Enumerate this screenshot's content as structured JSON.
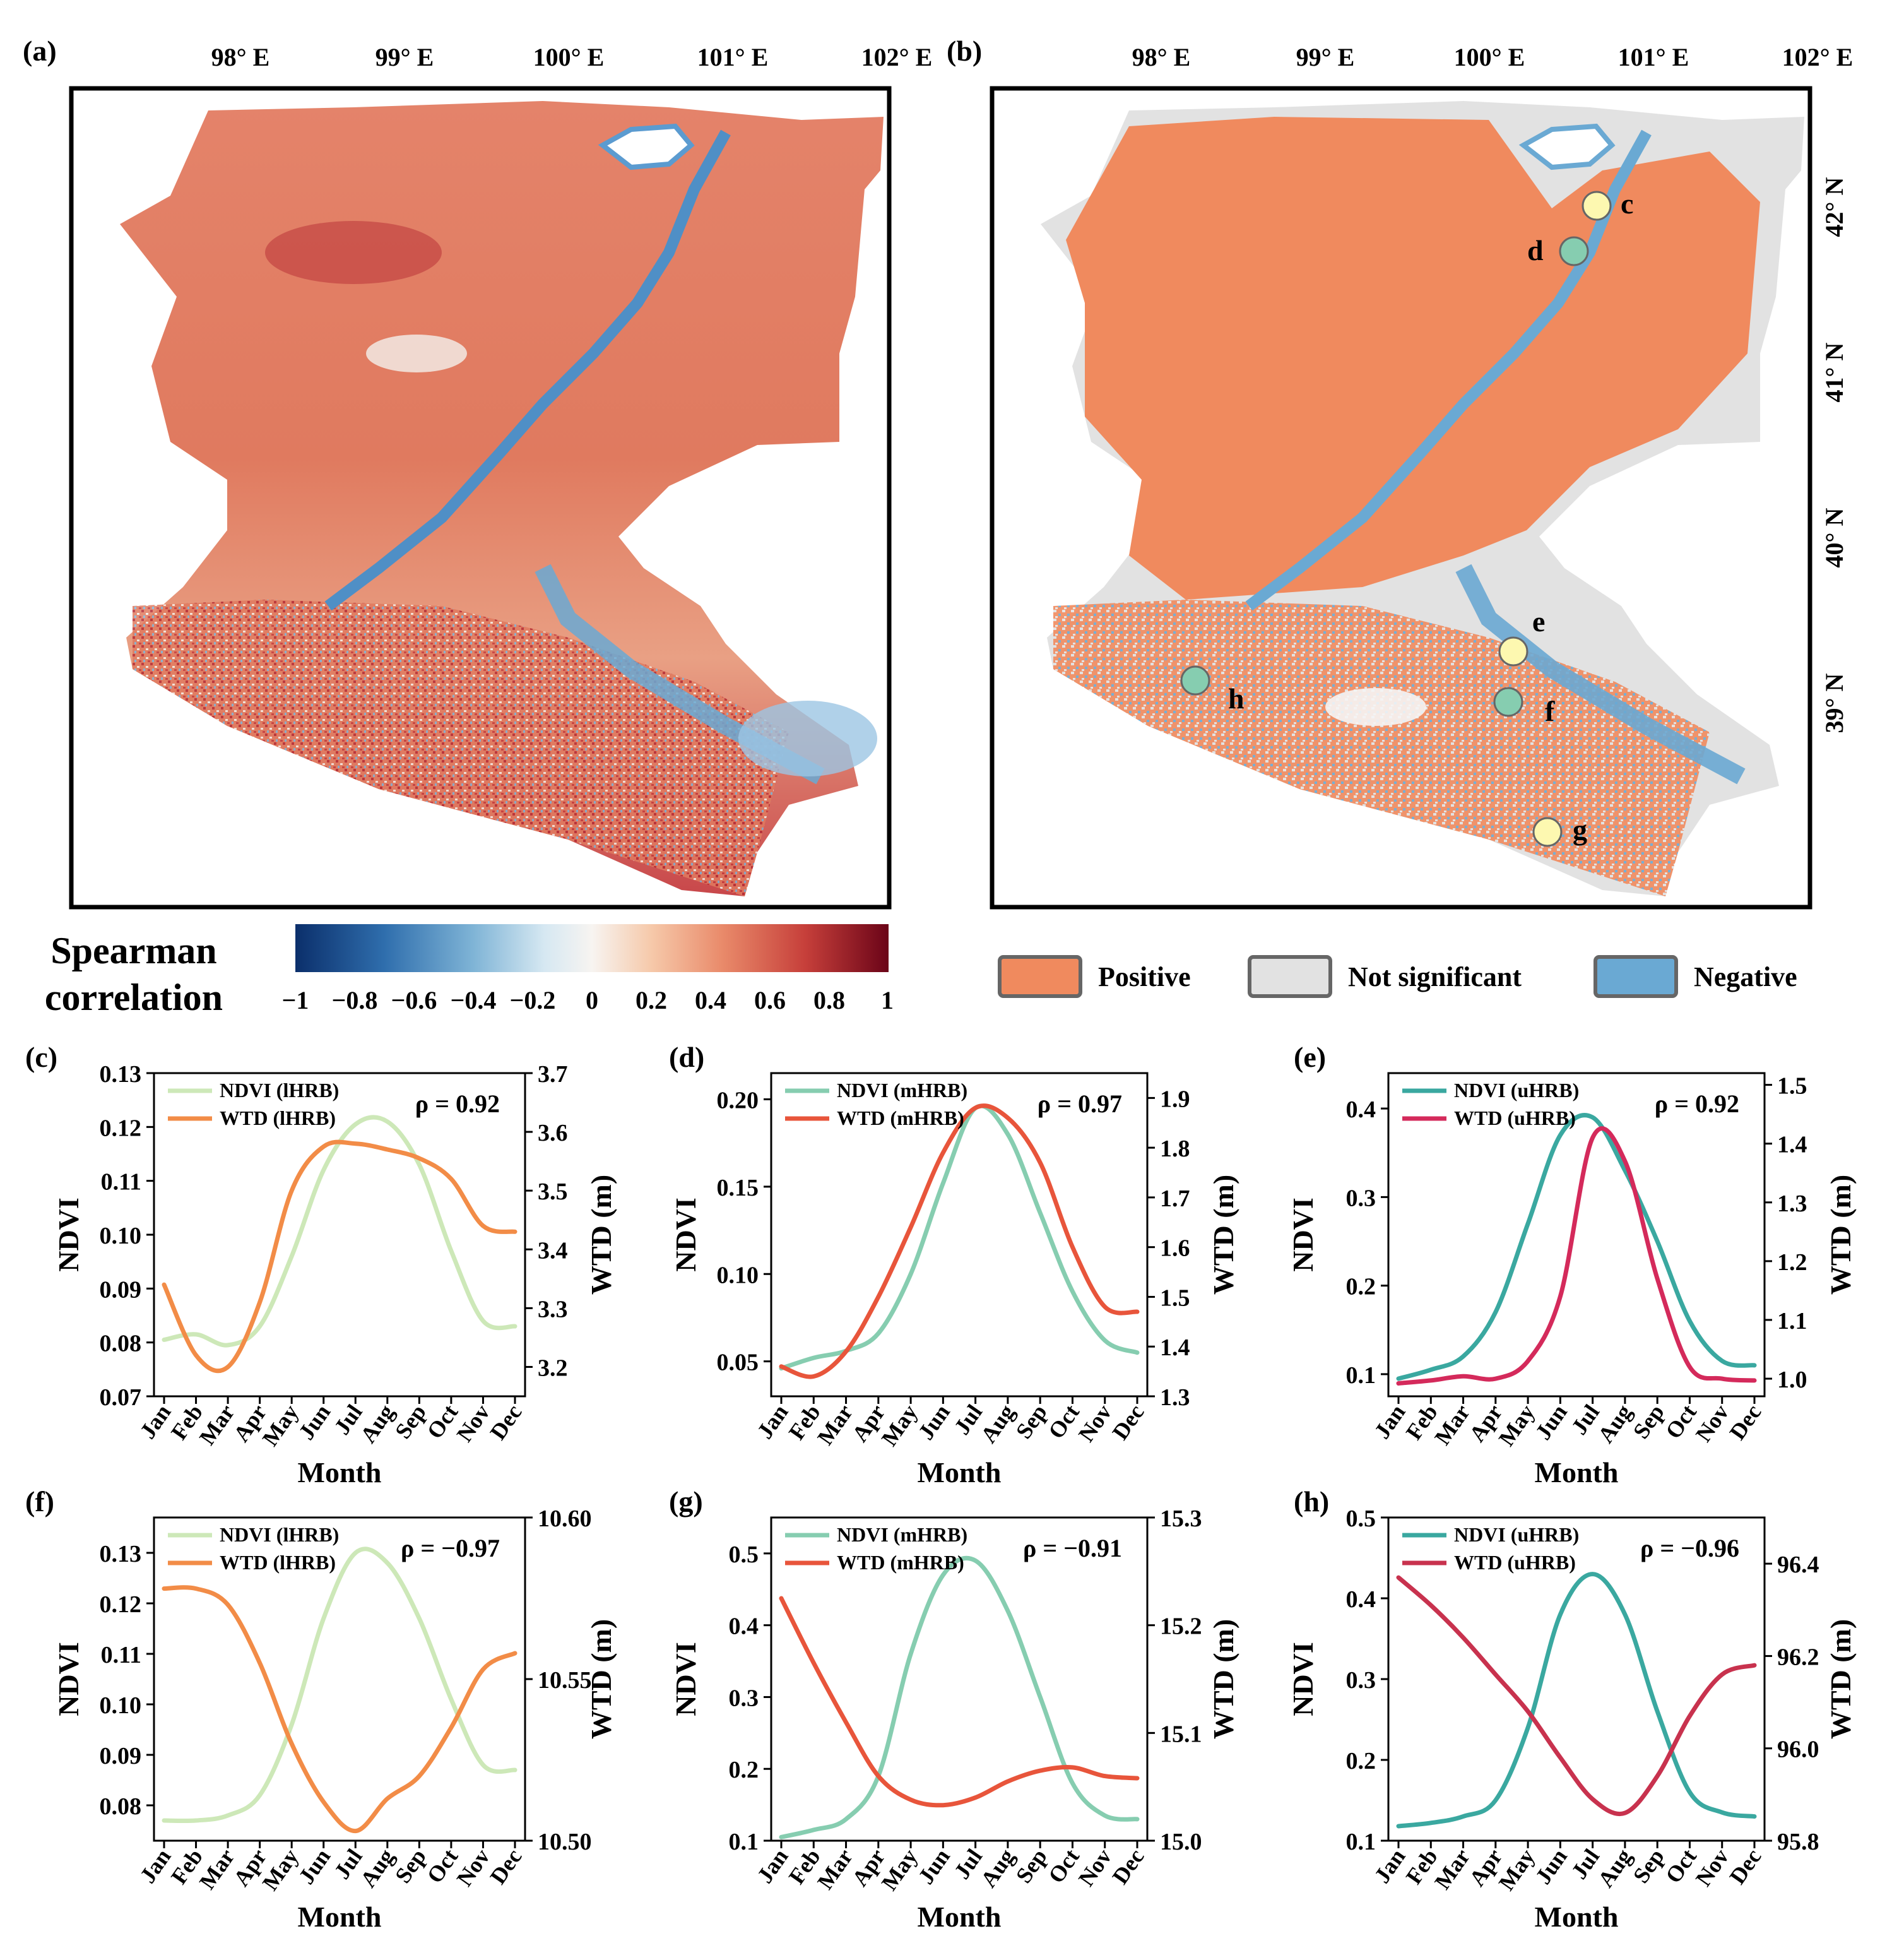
{
  "figure": {
    "panel_tags": [
      "(a)",
      "(b)",
      "(c)",
      "(d)",
      "(e)",
      "(f)",
      "(g)",
      "(h)"
    ],
    "lon_ticks": [
      "98° E",
      "99° E",
      "100° E",
      "101° E",
      "102° E"
    ],
    "lat_ticks": [
      "42° N",
      "41° N",
      "40° N",
      "39° N"
    ],
    "colorbar": {
      "title_line1": "Spearman",
      "title_line2": "correlation",
      "ticks": [
        "−1",
        "−0.8",
        "−0.6",
        "−0.4",
        "−0.2",
        "0",
        "0.2",
        "0.4",
        "0.6",
        "0.8",
        "1"
      ],
      "colors": [
        "#0b2f6b",
        "#2f6ead",
        "#7fb4d6",
        "#d6e8f2",
        "#f7f4f1",
        "#f6c9aa",
        "#e98a6a",
        "#c63f3a",
        "#6b0418"
      ]
    },
    "legend_b": [
      {
        "label": "Positive",
        "color": "#f08a5e"
      },
      {
        "label": "Not significant",
        "color": "#e2e2e2"
      },
      {
        "label": "Negative",
        "color": "#6aa9d3"
      }
    ],
    "site_markers": [
      {
        "label": "c",
        "type": "positive",
        "color": "#fdf8b0"
      },
      {
        "label": "d",
        "type": "negative",
        "color": "#86cdb0"
      },
      {
        "label": "e",
        "type": "positive",
        "color": "#fdf8b0"
      },
      {
        "label": "f",
        "type": "negative",
        "color": "#86cdb0"
      },
      {
        "label": "g",
        "type": "positive",
        "color": "#fdf8b0"
      },
      {
        "label": "h",
        "type": "negative",
        "color": "#86cdb0"
      }
    ],
    "map_colors": {
      "positive_red": "#e07a5f",
      "negative_blue": "#5b9bd0",
      "light": "#f3e6dd"
    }
  },
  "chart_data": [
    {
      "id": "c",
      "type": "line",
      "tag": "(c)",
      "categories": [
        "Jan",
        "Feb",
        "Mar",
        "Apr",
        "May",
        "Jun",
        "Jul",
        "Aug",
        "Sep",
        "Oct",
        "Nov",
        "Dec"
      ],
      "xlabel": "Month",
      "ylabel_left": "NDVI",
      "ylabel_right": "WTD (m)",
      "rho": "ρ = 0.92",
      "left": {
        "min": 0.07,
        "max": 0.13,
        "ticks": [
          "0.07",
          "0.08",
          "0.09",
          "0.10",
          "0.11",
          "0.12",
          "0.13"
        ]
      },
      "right": {
        "min": 3.15,
        "max": 3.7,
        "ticks": [
          "3.2",
          "3.3",
          "3.4",
          "3.5",
          "3.6",
          "3.7"
        ]
      },
      "series": [
        {
          "name": "NDVI (lHRB)",
          "axis": "left",
          "color": "#cde8b8",
          "values": [
            0.0805,
            0.0815,
            0.0795,
            0.083,
            0.096,
            0.112,
            0.1205,
            0.121,
            0.113,
            0.097,
            0.084,
            0.083
          ]
        },
        {
          "name": "WTD (lHRB)",
          "axis": "right",
          "color": "#f28c47",
          "values": [
            3.34,
            3.22,
            3.2,
            3.31,
            3.5,
            3.575,
            3.58,
            3.57,
            3.555,
            3.52,
            3.44,
            3.43
          ]
        }
      ]
    },
    {
      "id": "d",
      "type": "line",
      "tag": "(d)",
      "categories": [
        "Jan",
        "Feb",
        "Mar",
        "Apr",
        "May",
        "Jun",
        "Jul",
        "Aug",
        "Sep",
        "Oct",
        "Nov",
        "Dec"
      ],
      "xlabel": "Month",
      "ylabel_left": "NDVI",
      "ylabel_right": "WTD (m)",
      "rho": "ρ = 0.97",
      "left": {
        "min": 0.03,
        "max": 0.215,
        "ticks": [
          "0.05",
          "0.10",
          "0.15",
          "0.20"
        ]
      },
      "right": {
        "min": 1.3,
        "max": 1.95,
        "ticks": [
          "1.3",
          "1.4",
          "1.5",
          "1.6",
          "1.7",
          "1.8",
          "1.9"
        ]
      },
      "series": [
        {
          "name": "NDVI (mHRB)",
          "axis": "left",
          "color": "#86cdb0",
          "values": [
            0.046,
            0.052,
            0.056,
            0.066,
            0.1,
            0.152,
            0.195,
            0.18,
            0.135,
            0.09,
            0.062,
            0.055
          ]
        },
        {
          "name": "WTD (mHRB)",
          "axis": "right",
          "color": "#e8553b",
          "values": [
            1.36,
            1.34,
            1.39,
            1.5,
            1.64,
            1.79,
            1.88,
            1.86,
            1.77,
            1.6,
            1.48,
            1.47
          ]
        }
      ]
    },
    {
      "id": "e",
      "type": "line",
      "tag": "(e)",
      "categories": [
        "Jan",
        "Feb",
        "Mar",
        "Apr",
        "May",
        "Jun",
        "Jul",
        "Aug",
        "Sep",
        "Oct",
        "Nov",
        "Dec"
      ],
      "xlabel": "Month",
      "ylabel_left": "NDVI",
      "ylabel_right": "WTD (m)",
      "rho": "ρ = 0.92",
      "left": {
        "min": 0.075,
        "max": 0.44,
        "ticks": [
          "0.1",
          "0.2",
          "0.3",
          "0.4"
        ]
      },
      "right": {
        "min": 0.97,
        "max": 1.52,
        "ticks": [
          "1.0",
          "1.1",
          "1.2",
          "1.3",
          "1.4",
          "1.5"
        ]
      },
      "series": [
        {
          "name": "NDVI (uHRB)",
          "axis": "left",
          "color": "#3aa8a0",
          "values": [
            0.095,
            0.105,
            0.12,
            0.17,
            0.27,
            0.37,
            0.39,
            0.33,
            0.25,
            0.16,
            0.115,
            0.11
          ]
        },
        {
          "name": "WTD (uHRB)",
          "axis": "right",
          "color": "#d42a5b",
          "values": [
            0.992,
            0.997,
            1.004,
            1.0,
            1.03,
            1.14,
            1.41,
            1.37,
            1.17,
            1.02,
            1.0,
            0.997
          ]
        }
      ]
    },
    {
      "id": "f",
      "type": "line",
      "tag": "(f)",
      "categories": [
        "Jan",
        "Feb",
        "Mar",
        "Apr",
        "May",
        "Jun",
        "Jul",
        "Aug",
        "Sep",
        "Oct",
        "Nov",
        "Dec"
      ],
      "xlabel": "Month",
      "ylabel_left": "NDVI",
      "ylabel_right": "WTD (m)",
      "rho": "ρ = −0.97",
      "left": {
        "min": 0.073,
        "max": 0.137,
        "ticks": [
          "0.08",
          "0.09",
          "0.10",
          "0.11",
          "0.12",
          "0.13"
        ]
      },
      "right": {
        "min": 10.5,
        "max": 10.6,
        "ticks": [
          "10.50",
          "10.55",
          "10.60"
        ]
      },
      "series": [
        {
          "name": "NDVI (lHRB)",
          "axis": "left",
          "color": "#cde8b8",
          "values": [
            0.077,
            0.077,
            0.078,
            0.082,
            0.096,
            0.117,
            0.13,
            0.128,
            0.117,
            0.101,
            0.088,
            0.087
          ]
        },
        {
          "name": "WTD (lHRB)",
          "axis": "right",
          "color": "#f28c47",
          "values": [
            10.578,
            10.578,
            10.573,
            10.555,
            10.53,
            10.512,
            10.503,
            10.513,
            10.52,
            10.535,
            10.553,
            10.558
          ]
        }
      ]
    },
    {
      "id": "g",
      "type": "line",
      "tag": "(g)",
      "categories": [
        "Jan",
        "Feb",
        "Mar",
        "Apr",
        "May",
        "Jun",
        "Jul",
        "Aug",
        "Sep",
        "Oct",
        "Nov",
        "Dec"
      ],
      "xlabel": "Month",
      "ylabel_left": "NDVI",
      "ylabel_right": "WTD (m)",
      "rho": "ρ = −0.91",
      "left": {
        "min": 0.1,
        "max": 0.55,
        "ticks": [
          "0.1",
          "0.2",
          "0.3",
          "0.4",
          "0.5"
        ]
      },
      "right": {
        "min": 15.0,
        "max": 15.3,
        "ticks": [
          "15.0",
          "15.1",
          "15.2",
          "15.3"
        ]
      },
      "series": [
        {
          "name": "NDVI (mHRB)",
          "axis": "left",
          "color": "#86cdb0",
          "values": [
            0.105,
            0.115,
            0.13,
            0.19,
            0.36,
            0.47,
            0.49,
            0.42,
            0.3,
            0.18,
            0.135,
            0.13
          ]
        },
        {
          "name": "WTD (mHRB)",
          "axis": "right",
          "color": "#e8553b",
          "values": [
            15.225,
            15.165,
            15.11,
            15.06,
            15.038,
            15.033,
            15.04,
            15.055,
            15.065,
            15.068,
            15.06,
            15.058
          ]
        }
      ]
    },
    {
      "id": "h",
      "type": "line",
      "tag": "(h)",
      "categories": [
        "Jan",
        "Feb",
        "Mar",
        "Apr",
        "May",
        "Jun",
        "Jul",
        "Aug",
        "Sep",
        "Oct",
        "Nov",
        "Dec"
      ],
      "xlabel": "Month",
      "ylabel_left": "NDVI",
      "ylabel_right": "WTD (m)",
      "rho": "ρ = −0.96",
      "left": {
        "min": 0.1,
        "max": 0.5,
        "ticks": [
          "0.1",
          "0.2",
          "0.3",
          "0.4",
          "0.5"
        ]
      },
      "right": {
        "min": 95.8,
        "max": 96.5,
        "ticks": [
          "95.8",
          "96.0",
          "96.2",
          "96.4"
        ]
      },
      "series": [
        {
          "name": "NDVI (uHRB)",
          "axis": "left",
          "color": "#3aa8a0",
          "values": [
            0.118,
            0.122,
            0.13,
            0.15,
            0.24,
            0.38,
            0.43,
            0.38,
            0.26,
            0.16,
            0.135,
            0.13
          ]
        },
        {
          "name": "WTD (uHRB)",
          "axis": "right",
          "color": "#c8324e",
          "values": [
            96.37,
            96.31,
            96.24,
            96.16,
            96.08,
            95.98,
            95.89,
            95.86,
            95.94,
            96.07,
            96.16,
            96.18
          ]
        }
      ]
    }
  ]
}
